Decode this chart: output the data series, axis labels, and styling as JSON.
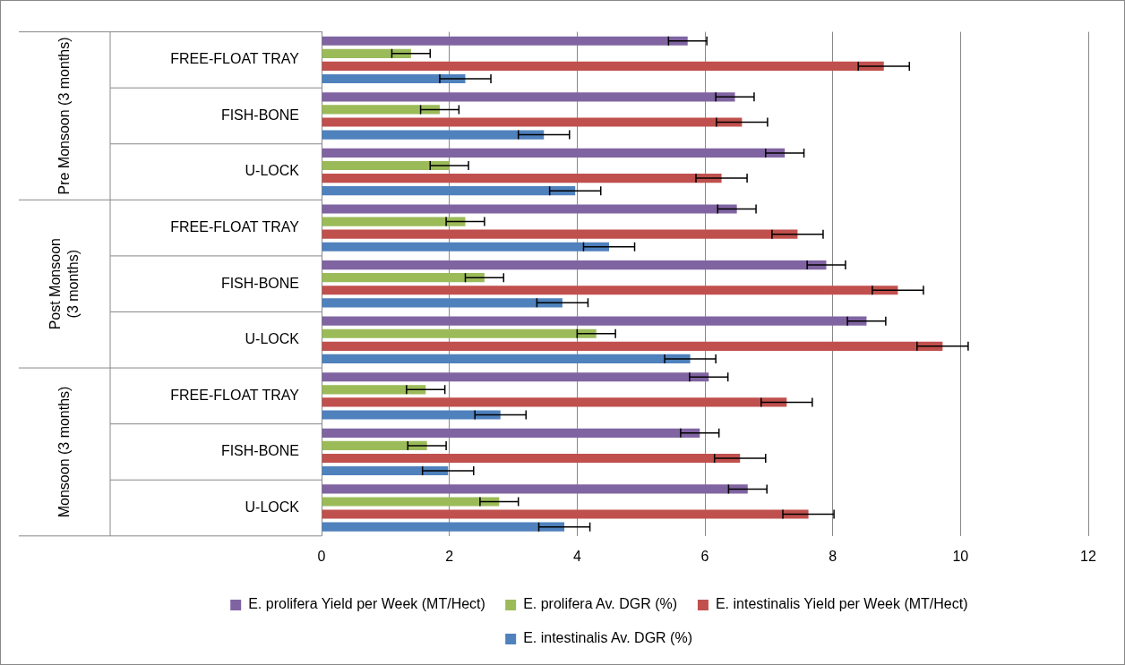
{
  "chart_data": {
    "type": "bar",
    "orientation": "horizontal",
    "categories": [
      "FREE-FLOAT TRAY",
      "FISH-BONE",
      "U-LOCK",
      "FREE-FLOAT TRAY",
      "FISH-BONE",
      "U-LOCK",
      "FREE-FLOAT TRAY",
      "FISH-BONE",
      "U-LOCK"
    ],
    "series": [
      {
        "name": "E. prolifera Yield per Week (MT/Hect)",
        "color": "#8064a2",
        "values": [
          5.73,
          6.47,
          7.25,
          6.5,
          7.9,
          8.53,
          6.06,
          5.92,
          6.67
        ],
        "errors": [
          0.3,
          0.3,
          0.3,
          0.3,
          0.3,
          0.3,
          0.3,
          0.3,
          0.3
        ]
      },
      {
        "name": "E. prolifera Av. DGR (%)",
        "color": "#9bbb59",
        "values": [
          1.4,
          1.85,
          2.0,
          2.25,
          2.55,
          4.3,
          1.63,
          1.65,
          2.78
        ],
        "errors": [
          0.3,
          0.3,
          0.3,
          0.3,
          0.3,
          0.3,
          0.3,
          0.3,
          0.3
        ]
      },
      {
        "name": "E. intestinalis Yield per Week (MT/Hect)",
        "color": "#c0504d",
        "values": [
          8.8,
          6.58,
          6.26,
          7.45,
          9.02,
          9.72,
          7.28,
          6.55,
          7.62
        ],
        "errors": [
          0.4,
          0.4,
          0.4,
          0.4,
          0.4,
          0.4,
          0.4,
          0.4,
          0.4
        ]
      },
      {
        "name": "E. intestinalis Av. DGR (%)",
        "color": "#4f81bd",
        "values": [
          2.25,
          3.48,
          3.97,
          4.5,
          3.77,
          5.77,
          2.8,
          1.98,
          3.8
        ],
        "errors": [
          0.4,
          0.4,
          0.4,
          0.4,
          0.4,
          0.4,
          0.4,
          0.4,
          0.4
        ]
      }
    ],
    "annotations": [
      "Pre Monsoon (3 months)",
      "Post Monsoon (3 months)",
      "Monsoon (3 months)"
    ],
    "xlim": [
      0,
      12
    ],
    "xticks": [
      0,
      2,
      4,
      6,
      8,
      10,
      12
    ],
    "grid": "x",
    "legend": "bottom"
  }
}
